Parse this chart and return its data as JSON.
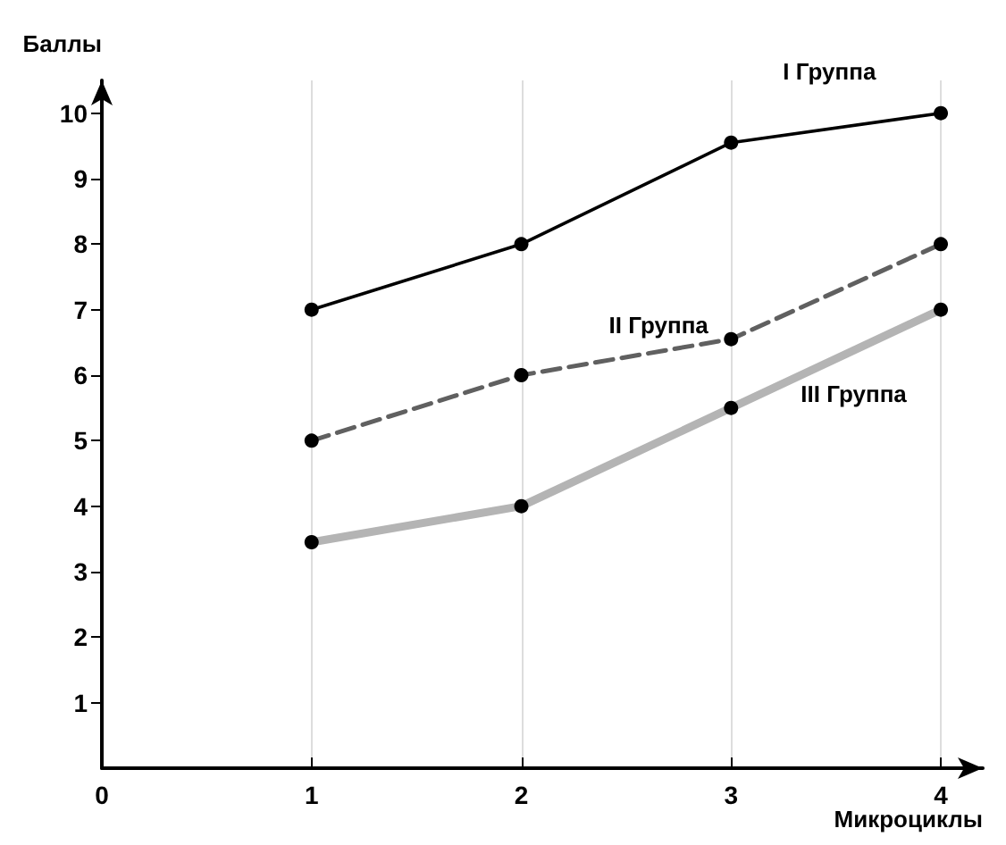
{
  "chart_data": {
    "type": "line",
    "xlabel": "Микроциклы",
    "ylabel": "Баллы",
    "x": [
      1,
      2,
      3,
      4
    ],
    "xlim": [
      0,
      4.2
    ],
    "xticks": [
      0,
      1,
      2,
      3,
      4
    ],
    "ylim": [
      0,
      10.5
    ],
    "yticks": [
      1,
      2,
      3,
      4,
      5,
      6,
      7,
      8,
      9,
      10
    ],
    "grid": "x",
    "legend": false,
    "marker": "circle",
    "series": [
      {
        "name": "I Группа",
        "color": "#000000",
        "line_style": "solid",
        "values": [
          7,
          8,
          9.55,
          10
        ]
      },
      {
        "name": "II Группа",
        "color": "#606060",
        "line_style": "dashed",
        "values": [
          5,
          6,
          6.55,
          8
        ]
      },
      {
        "name": "III Группа",
        "color": "#b4b4b4",
        "line_style": "solid",
        "values": [
          3.45,
          4,
          5.5,
          7
        ]
      }
    ]
  }
}
